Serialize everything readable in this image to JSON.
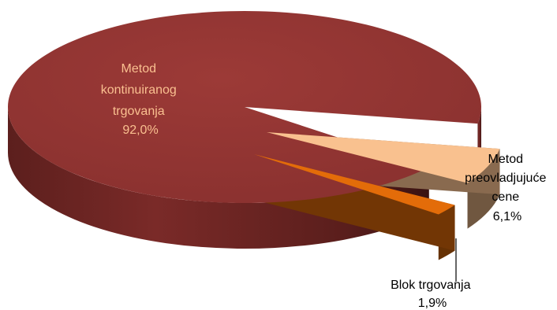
{
  "chart_data": {
    "type": "pie",
    "style": "3d-exploded",
    "legend": "none",
    "slices": [
      {
        "label_lines": [
          "Metod",
          "kontinuiranog",
          "trgovanja"
        ],
        "value": 92.0,
        "value_text": "92,0%",
        "color": "#943634",
        "label_color": "#fac090"
      },
      {
        "label_lines": [
          "Metod",
          "preovladjujuće",
          "cene"
        ],
        "value": 6.1,
        "value_text": "6,1%",
        "color": "#f9c18f",
        "label_color": "#000000"
      },
      {
        "label_lines": [
          "Blok trgovanja"
        ],
        "value": 1.9,
        "value_text": "1,9%",
        "color": "#e36c09",
        "label_color": "#000000"
      }
    ]
  }
}
